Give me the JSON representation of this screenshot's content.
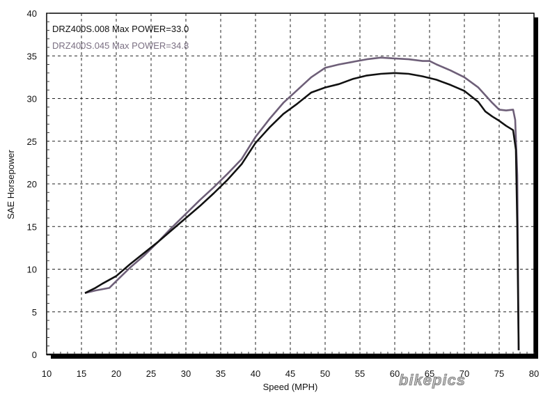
{
  "chart_data": {
    "type": "line",
    "title": "",
    "xlabel": "Speed (MPH)",
    "ylabel": "SAE Horsepower",
    "xlim": [
      10,
      80
    ],
    "ylim": [
      0,
      40
    ],
    "xticks": [
      "10",
      "15",
      "20",
      "25",
      "30",
      "35",
      "40",
      "45",
      "50",
      "55",
      "60",
      "65",
      "70",
      "75",
      "80"
    ],
    "yticks": [
      "0",
      "5",
      "10",
      "15",
      "20",
      "25",
      "30",
      "35",
      "40"
    ],
    "grid": true,
    "legend_position": "top-left",
    "series": [
      {
        "name": "DRZ400S.008",
        "legend": "DRZ400S.008  Max POWER=33.0",
        "color": "#111111",
        "points": [
          [
            15.5,
            7.2
          ],
          [
            17,
            7.8
          ],
          [
            18,
            8.3
          ],
          [
            20,
            9.2
          ],
          [
            22,
            10.6
          ],
          [
            24,
            11.9
          ],
          [
            26,
            13.2
          ],
          [
            28,
            14.6
          ],
          [
            30,
            16.0
          ],
          [
            32,
            17.4
          ],
          [
            34,
            18.9
          ],
          [
            36,
            20.5
          ],
          [
            38,
            22.3
          ],
          [
            40,
            24.8
          ],
          [
            42,
            26.6
          ],
          [
            44,
            28.2
          ],
          [
            46,
            29.4
          ],
          [
            48,
            30.7
          ],
          [
            50,
            31.3
          ],
          [
            52,
            31.7
          ],
          [
            54,
            32.3
          ],
          [
            56,
            32.7
          ],
          [
            58,
            32.9
          ],
          [
            60,
            33.0
          ],
          [
            62,
            32.9
          ],
          [
            64,
            32.6
          ],
          [
            66,
            32.2
          ],
          [
            68,
            31.6
          ],
          [
            70,
            30.9
          ],
          [
            72,
            29.6
          ],
          [
            73,
            28.5
          ],
          [
            74,
            27.9
          ],
          [
            75,
            27.4
          ],
          [
            76,
            26.8
          ],
          [
            77,
            26.3
          ],
          [
            77.4,
            24.0
          ],
          [
            77.6,
            15.0
          ],
          [
            77.8,
            0.5
          ]
        ]
      },
      {
        "name": "DRZ400S.045",
        "legend": "DRZ400S.045  Max POWER=34.8",
        "color": "#6e5f78",
        "points": [
          [
            15.5,
            7.2
          ],
          [
            17,
            7.5
          ],
          [
            19,
            7.8
          ],
          [
            20,
            8.6
          ],
          [
            22,
            10.2
          ],
          [
            24,
            11.6
          ],
          [
            26,
            13.2
          ],
          [
            28,
            14.9
          ],
          [
            30,
            16.5
          ],
          [
            32,
            18.1
          ],
          [
            34,
            19.6
          ],
          [
            36,
            21.2
          ],
          [
            38,
            22.9
          ],
          [
            40,
            25.5
          ],
          [
            42,
            27.6
          ],
          [
            44,
            29.5
          ],
          [
            46,
            31.0
          ],
          [
            48,
            32.5
          ],
          [
            50,
            33.6
          ],
          [
            52,
            34.0
          ],
          [
            54,
            34.3
          ],
          [
            56,
            34.6
          ],
          [
            58,
            34.8
          ],
          [
            60,
            34.7
          ],
          [
            62,
            34.6
          ],
          [
            64,
            34.4
          ],
          [
            65,
            34.4
          ],
          [
            66,
            34.0
          ],
          [
            68,
            33.3
          ],
          [
            70,
            32.5
          ],
          [
            72,
            31.3
          ],
          [
            74,
            29.5
          ],
          [
            75,
            28.7
          ],
          [
            76,
            28.6
          ],
          [
            77,
            28.7
          ],
          [
            77.3,
            27.5
          ],
          [
            77.6,
            21.0
          ],
          [
            77.8,
            0.5
          ]
        ]
      }
    ]
  },
  "watermark": {
    "text": "bikepics"
  }
}
